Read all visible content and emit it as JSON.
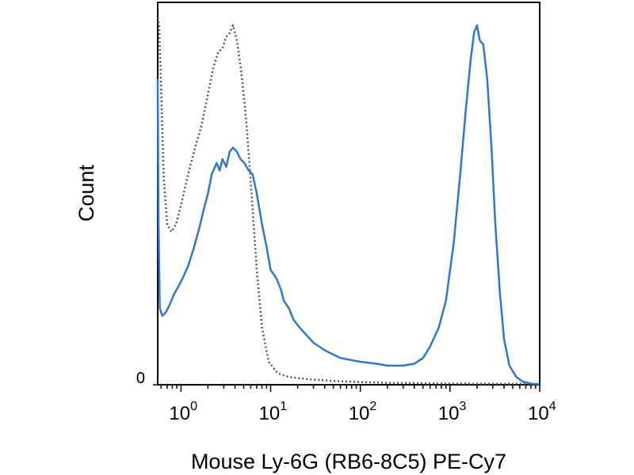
{
  "chart_data": {
    "type": "line",
    "xlabel": "Mouse Ly-6G (RB6-8C5) PE-Cy7",
    "ylabel": "Count",
    "x_scale": "log",
    "xlim": [
      0.55,
      10000
    ],
    "ylim": [
      0,
      100
    ],
    "grid": false,
    "legend": "none",
    "x_ticks": [
      {
        "base": "10",
        "exp": "0",
        "value": 1
      },
      {
        "base": "10",
        "exp": "1",
        "value": 10
      },
      {
        "base": "10",
        "exp": "2",
        "value": 100
      },
      {
        "base": "10",
        "exp": "3",
        "value": 1000
      },
      {
        "base": "10",
        "exp": "4",
        "value": 10000
      }
    ],
    "y_ticks": [
      {
        "label": "0",
        "value": 0
      }
    ],
    "series": [
      {
        "style": "dotted",
        "color": "#555555",
        "points": [
          [
            0.55,
            96
          ],
          [
            0.57,
            94
          ],
          [
            0.6,
            78
          ],
          [
            0.64,
            55
          ],
          [
            0.7,
            42
          ],
          [
            0.78,
            40
          ],
          [
            0.88,
            42
          ],
          [
            1.0,
            47
          ],
          [
            1.2,
            55
          ],
          [
            1.4,
            61
          ],
          [
            1.7,
            68
          ],
          [
            2.0,
            76
          ],
          [
            2.3,
            83
          ],
          [
            2.6,
            87
          ],
          [
            2.9,
            88
          ],
          [
            3.2,
            91
          ],
          [
            3.5,
            92
          ],
          [
            3.8,
            94
          ],
          [
            4.2,
            90
          ],
          [
            4.7,
            82
          ],
          [
            5.3,
            70
          ],
          [
            6.0,
            53
          ],
          [
            7.0,
            30
          ],
          [
            8.0,
            15
          ],
          [
            9.5,
            6
          ],
          [
            12,
            3
          ],
          [
            16,
            2
          ],
          [
            25,
            1.5
          ],
          [
            50,
            1
          ],
          [
            100,
            0.7
          ],
          [
            200,
            0.5
          ],
          [
            1000,
            0.3
          ],
          [
            10000,
            0.2
          ]
        ]
      },
      {
        "style": "solid",
        "color": "#2e78d2",
        "points": [
          [
            0.55,
            80
          ],
          [
            0.56,
            45
          ],
          [
            0.58,
            20
          ],
          [
            0.62,
            18
          ],
          [
            0.68,
            19
          ],
          [
            0.75,
            21
          ],
          [
            0.85,
            24
          ],
          [
            0.95,
            26
          ],
          [
            1.05,
            28
          ],
          [
            1.2,
            31
          ],
          [
            1.4,
            36
          ],
          [
            1.6,
            41
          ],
          [
            1.8,
            46
          ],
          [
            2.0,
            50
          ],
          [
            2.2,
            55
          ],
          [
            2.5,
            58
          ],
          [
            2.7,
            56
          ],
          [
            2.9,
            59
          ],
          [
            3.2,
            57
          ],
          [
            3.5,
            61
          ],
          [
            3.8,
            62
          ],
          [
            4.2,
            61
          ],
          [
            4.6,
            59
          ],
          [
            5.1,
            58
          ],
          [
            5.7,
            56
          ],
          [
            6.3,
            55
          ],
          [
            7.0,
            50
          ],
          [
            8.0,
            42
          ],
          [
            9.0,
            36
          ],
          [
            10.0,
            30
          ],
          [
            11.5,
            28
          ],
          [
            13,
            25
          ],
          [
            14,
            22
          ],
          [
            16,
            20
          ],
          [
            18,
            17
          ],
          [
            21,
            15
          ],
          [
            25,
            13
          ],
          [
            30,
            11
          ],
          [
            40,
            9
          ],
          [
            60,
            7
          ],
          [
            100,
            6
          ],
          [
            150,
            5.5
          ],
          [
            200,
            5
          ],
          [
            300,
            5
          ],
          [
            400,
            5.5
          ],
          [
            500,
            7
          ],
          [
            600,
            10
          ],
          [
            750,
            15
          ],
          [
            900,
            22
          ],
          [
            1100,
            37
          ],
          [
            1300,
            55
          ],
          [
            1500,
            72
          ],
          [
            1700,
            85
          ],
          [
            1850,
            92
          ],
          [
            2000,
            94
          ],
          [
            2150,
            90
          ],
          [
            2350,
            89
          ],
          [
            2600,
            80
          ],
          [
            2900,
            62
          ],
          [
            3200,
            42
          ],
          [
            3600,
            24
          ],
          [
            4000,
            12
          ],
          [
            4600,
            5
          ],
          [
            5500,
            2
          ],
          [
            6500,
            0.8
          ],
          [
            8000,
            0.3
          ],
          [
            10000,
            0.1
          ]
        ]
      }
    ]
  }
}
